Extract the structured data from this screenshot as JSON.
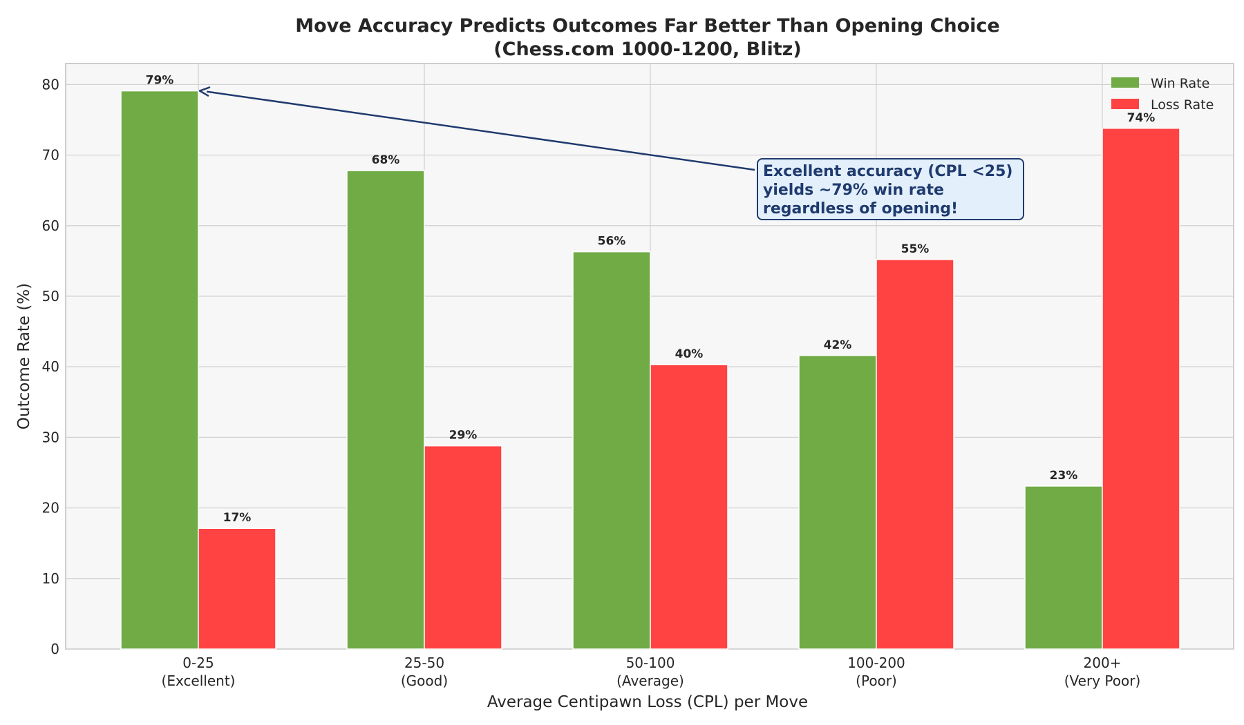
{
  "chart_data": {
    "type": "bar",
    "title": "Move Accuracy Predicts Outcomes Far Better Than Opening Choice",
    "subtitle": "(Chess.com 1000-1200, Blitz)",
    "xlabel": "Average Centipawn Loss (CPL) per Move",
    "ylabel": "Outcome Rate (%)",
    "ylim": [
      0,
      83
    ],
    "yticks": [
      0,
      10,
      20,
      30,
      40,
      50,
      60,
      70,
      80
    ],
    "grid": true,
    "legend_position": "top-right",
    "categories": [
      {
        "line1": "0-25",
        "line2": "(Excellent)"
      },
      {
        "line1": "25-50",
        "line2": "(Good)"
      },
      {
        "line1": "50-100",
        "line2": "(Average)"
      },
      {
        "line1": "100-200",
        "line2": "(Poor)"
      },
      {
        "line1": "200+",
        "line2": "(Very Poor)"
      }
    ],
    "series": [
      {
        "name": "Win Rate",
        "color": "#70ab46",
        "values": [
          79.1,
          67.8,
          56.3,
          41.6,
          23.1
        ],
        "labels": [
          "79%",
          "68%",
          "56%",
          "42%",
          "23%"
        ]
      },
      {
        "name": "Loss Rate",
        "color": "#ff4343",
        "values": [
          17.1,
          28.8,
          40.3,
          55.2,
          73.8
        ],
        "labels": [
          "17%",
          "29%",
          "40%",
          "55%",
          "74%"
        ]
      }
    ],
    "annotation": {
      "lines": [
        "Excellent accuracy (CPL <25)",
        "yields ~79% win rate",
        "regardless of opening!"
      ],
      "target_category": 0,
      "target_value": 79.1,
      "box_color": "#e3f0fb",
      "border_color": "#1f3a6e"
    }
  }
}
